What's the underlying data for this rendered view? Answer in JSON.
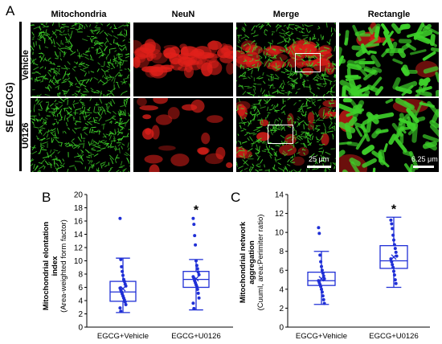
{
  "panel_a": {
    "letter": "A",
    "group_label": "SE (EGCG)",
    "column_headers": [
      "Mitochondria",
      "NeuN",
      "Merge",
      "Rectangle"
    ],
    "row_labels": [
      "Vehicle",
      "U0126"
    ],
    "scale_bars": [
      "25 μm",
      "6.25 μm"
    ]
  },
  "colors": {
    "plot_blue": "#1f2fd6",
    "mito_green": "#3ed12a",
    "neun_red": "#e0201a"
  },
  "chart_data": [
    {
      "type": "box",
      "panel_letter": "B",
      "ylabel_line1": "Mitochondrial elontation",
      "ylabel_line2": "index",
      "ylabel_line3": "(Area-weighted form factor)",
      "ylim": [
        0,
        20
      ],
      "yticks": [
        "0",
        "2",
        "4",
        "6",
        "8",
        "10",
        "12",
        "14",
        "16",
        "18",
        "20"
      ],
      "categories": [
        "EGCG+Vehicle",
        "EGCG+U0126"
      ],
      "significance": [
        "",
        "*"
      ],
      "boxes": [
        {
          "whisker_low": 2.2,
          "q1": 3.9,
          "median": 5.3,
          "q3": 6.9,
          "whisker_high": 10.4,
          "mean": 5.8,
          "points": [
            16.4,
            10.2,
            9.1,
            8.4,
            7.8,
            7.2,
            6.9,
            6.5,
            6.2,
            5.9,
            5.6,
            5.3,
            5.0,
            4.7,
            4.4,
            4.1,
            3.8,
            3.4,
            2.9,
            2.4
          ]
        },
        {
          "whisker_low": 2.6,
          "q1": 6.0,
          "median": 7.2,
          "q3": 8.4,
          "whisker_high": 10.2,
          "mean": 7.3,
          "points": [
            16.4,
            15.5,
            13.8,
            12.4,
            10.0,
            9.3,
            8.8,
            8.3,
            7.9,
            7.6,
            7.3,
            7.0,
            6.7,
            6.4,
            6.1,
            5.7,
            5.1,
            4.4,
            3.6,
            2.8
          ]
        }
      ]
    },
    {
      "type": "box",
      "panel_letter": "C",
      "ylabel_line1": "Mitochondrial network",
      "ylabel_line2": "aggregation",
      "ylabel_line3": "(Cuuml, area:Perimiter ratio)",
      "ylim": [
        0,
        14
      ],
      "yticks": [
        "0",
        "2",
        "4",
        "6",
        "8",
        "10",
        "12",
        "14"
      ],
      "categories": [
        "EGCG+Vehicle",
        "EGCG+U0126"
      ],
      "significance": [
        "",
        "*"
      ],
      "boxes": [
        {
          "whisker_low": 2.4,
          "q1": 4.4,
          "median": 4.9,
          "q3": 5.8,
          "whisker_high": 8.0,
          "mean": 5.1,
          "points": [
            10.5,
            9.9,
            7.6,
            6.9,
            6.4,
            6.0,
            5.7,
            5.4,
            5.1,
            4.9,
            4.7,
            4.5,
            4.3,
            4.0,
            3.7,
            3.3,
            2.9,
            2.5
          ]
        },
        {
          "whisker_low": 4.2,
          "q1": 6.2,
          "median": 7.0,
          "q3": 8.6,
          "whisker_high": 11.6,
          "mean": 7.4,
          "points": [
            11.3,
            10.9,
            10.4,
            9.7,
            9.2,
            8.7,
            8.3,
            7.9,
            7.5,
            7.2,
            6.9,
            6.6,
            6.3,
            5.9,
            5.5,
            5.0,
            4.6
          ]
        }
      ]
    }
  ]
}
